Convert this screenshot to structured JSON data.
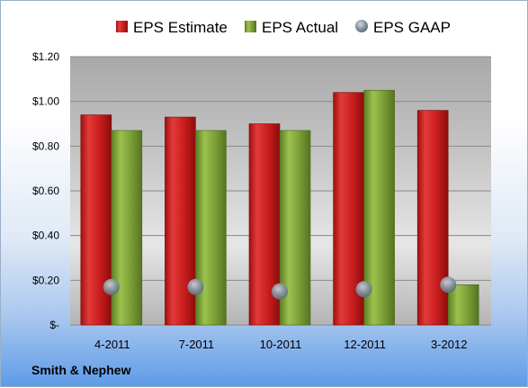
{
  "company": "Smith & Nephew",
  "colors": {
    "estimate": "#cc1f1f",
    "actual": "#7fa33a",
    "gaap": "#8d9aa7"
  },
  "chart_data": {
    "type": "bar",
    "categories": [
      "4-2011",
      "7-2011",
      "10-2011",
      "12-2011",
      "3-2012"
    ],
    "series": [
      {
        "name": "EPS Estimate",
        "kind": "bar",
        "values": [
          0.94,
          0.93,
          0.9,
          1.04,
          0.96
        ]
      },
      {
        "name": "EPS Actual",
        "kind": "bar",
        "values": [
          0.87,
          0.87,
          0.87,
          1.05,
          0.18
        ]
      },
      {
        "name": "EPS GAAP",
        "kind": "marker",
        "values": [
          0.17,
          0.17,
          0.15,
          0.16,
          0.18
        ]
      }
    ],
    "ylim": [
      0,
      1.2
    ],
    "yticks": [
      0,
      0.2,
      0.4,
      0.6,
      0.8,
      1.0,
      1.2
    ],
    "ytick_labels": [
      "$-",
      "$0.20",
      "$0.40",
      "$0.60",
      "$0.80",
      "$1.00",
      "$1.20"
    ],
    "grid": true,
    "legend_position": "top"
  }
}
